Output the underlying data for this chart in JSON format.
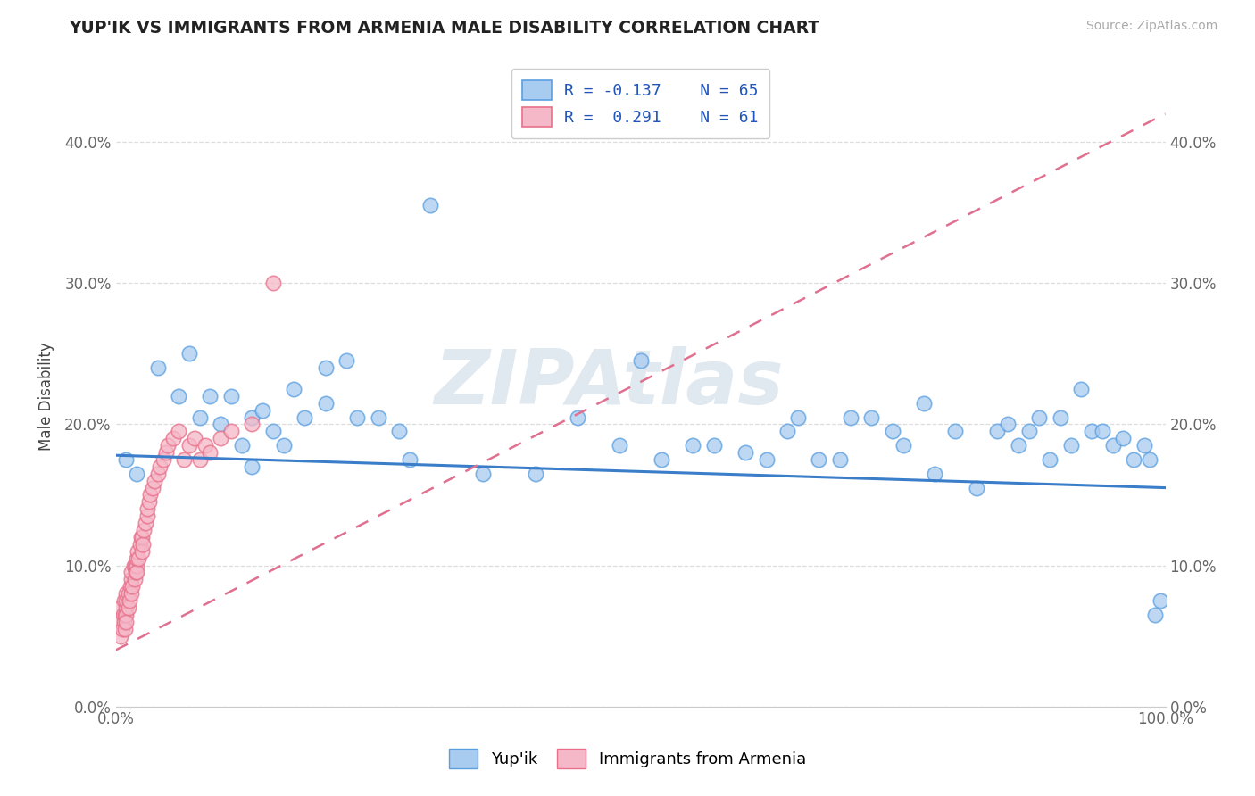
{
  "title": "YUP'IK VS IMMIGRANTS FROM ARMENIA MALE DISABILITY CORRELATION CHART",
  "source": "Source: ZipAtlas.com",
  "ylabel": "Male Disability",
  "watermark": "ZIPAtlas",
  "legend_r1": "R = -0.137",
  "legend_n1": "N = 65",
  "legend_r2": "R =  0.291",
  "legend_n2": "N = 61",
  "xlim": [
    0.0,
    1.0
  ],
  "ylim": [
    0.0,
    0.44
  ],
  "yticks": [
    0.0,
    0.1,
    0.2,
    0.3,
    0.4
  ],
  "xticks": [
    0.0,
    0.1,
    0.2,
    0.3,
    0.4,
    0.5,
    0.6,
    0.7,
    0.8,
    0.9,
    1.0
  ],
  "color_blue": "#A8CBF0",
  "color_pink": "#F5B8C8",
  "edge_blue": "#5A9FE0",
  "edge_pink": "#E8708A",
  "line_blue": "#3A7DC9",
  "line_pink": "#E07090",
  "background": "#ffffff",
  "grid_color": "#dddddd",
  "yupik_x": [
    0.01,
    0.02,
    0.04,
    0.06,
    0.07,
    0.08,
    0.09,
    0.1,
    0.11,
    0.12,
    0.13,
    0.14,
    0.15,
    0.16,
    0.17,
    0.18,
    0.2,
    0.22,
    0.23,
    0.25,
    0.27,
    0.28,
    0.3,
    0.35,
    0.4,
    0.44,
    0.48,
    0.5,
    0.52,
    0.55,
    0.57,
    0.6,
    0.62,
    0.64,
    0.65,
    0.67,
    0.69,
    0.7,
    0.72,
    0.74,
    0.75,
    0.77,
    0.78,
    0.8,
    0.82,
    0.84,
    0.85,
    0.86,
    0.87,
    0.88,
    0.89,
    0.9,
    0.91,
    0.92,
    0.93,
    0.94,
    0.95,
    0.96,
    0.97,
    0.98,
    0.985,
    0.99,
    0.995,
    0.13,
    0.2
  ],
  "yupik_y": [
    0.175,
    0.165,
    0.24,
    0.22,
    0.25,
    0.205,
    0.22,
    0.2,
    0.22,
    0.185,
    0.205,
    0.21,
    0.195,
    0.185,
    0.225,
    0.205,
    0.215,
    0.245,
    0.205,
    0.205,
    0.195,
    0.175,
    0.355,
    0.165,
    0.165,
    0.205,
    0.185,
    0.245,
    0.175,
    0.185,
    0.185,
    0.18,
    0.175,
    0.195,
    0.205,
    0.175,
    0.175,
    0.205,
    0.205,
    0.195,
    0.185,
    0.215,
    0.165,
    0.195,
    0.155,
    0.195,
    0.2,
    0.185,
    0.195,
    0.205,
    0.175,
    0.205,
    0.185,
    0.225,
    0.195,
    0.195,
    0.185,
    0.19,
    0.175,
    0.185,
    0.175,
    0.065,
    0.075,
    0.17,
    0.24
  ],
  "armenia_x": [
    0.005,
    0.005,
    0.005,
    0.006,
    0.007,
    0.008,
    0.008,
    0.009,
    0.009,
    0.01,
    0.01,
    0.01,
    0.01,
    0.01,
    0.012,
    0.012,
    0.013,
    0.014,
    0.015,
    0.015,
    0.015,
    0.016,
    0.017,
    0.018,
    0.018,
    0.019,
    0.02,
    0.02,
    0.02,
    0.021,
    0.022,
    0.023,
    0.024,
    0.025,
    0.025,
    0.026,
    0.027,
    0.028,
    0.03,
    0.03,
    0.032,
    0.033,
    0.035,
    0.037,
    0.04,
    0.042,
    0.045,
    0.048,
    0.05,
    0.055,
    0.06,
    0.065,
    0.07,
    0.075,
    0.08,
    0.085,
    0.09,
    0.1,
    0.11,
    0.13,
    0.15
  ],
  "armenia_y": [
    0.05,
    0.06,
    0.07,
    0.055,
    0.065,
    0.075,
    0.06,
    0.065,
    0.055,
    0.07,
    0.075,
    0.065,
    0.08,
    0.06,
    0.07,
    0.08,
    0.075,
    0.085,
    0.09,
    0.08,
    0.095,
    0.085,
    0.1,
    0.09,
    0.1,
    0.095,
    0.1,
    0.105,
    0.095,
    0.11,
    0.105,
    0.115,
    0.12,
    0.11,
    0.12,
    0.115,
    0.125,
    0.13,
    0.135,
    0.14,
    0.145,
    0.15,
    0.155,
    0.16,
    0.165,
    0.17,
    0.175,
    0.18,
    0.185,
    0.19,
    0.195,
    0.175,
    0.185,
    0.19,
    0.175,
    0.185,
    0.18,
    0.19,
    0.195,
    0.2,
    0.3
  ],
  "blue_line_x": [
    0.0,
    1.0
  ],
  "blue_line_y": [
    0.178,
    0.155
  ],
  "pink_line_x": [
    0.0,
    1.0
  ],
  "pink_line_y": [
    0.04,
    0.42
  ]
}
